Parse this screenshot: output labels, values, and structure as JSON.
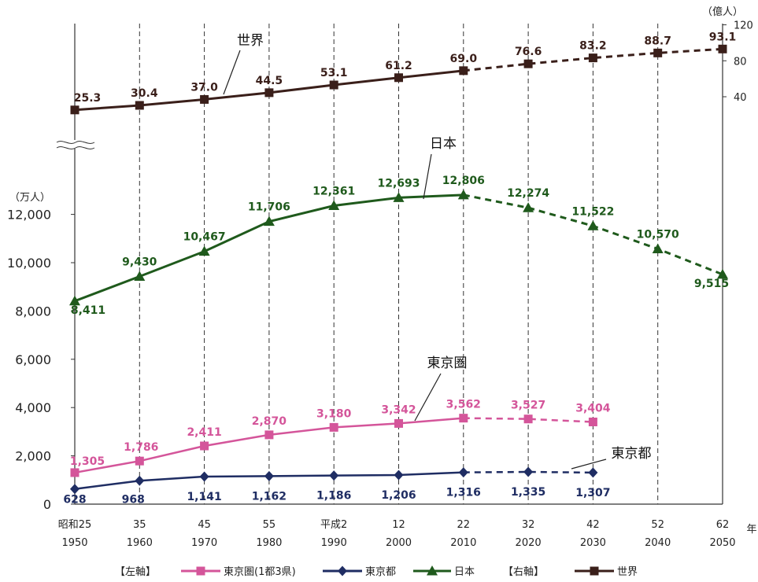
{
  "chart_data": {
    "type": "line",
    "left_axis": {
      "unit_label": "（万人）",
      "ticks": [
        0,
        2000,
        4000,
        6000,
        8000,
        10000,
        12000
      ],
      "tick_labels": [
        "0",
        "2,000",
        "4,000",
        "6,000",
        "8,000",
        "10,000",
        "12,000"
      ],
      "ylim": [
        0,
        13000
      ]
    },
    "right_axis": {
      "unit_label": "（億人）",
      "ticks": [
        40,
        80,
        120
      ],
      "tick_labels": [
        "40",
        "80",
        "120"
      ]
    },
    "x_unit_label": "年",
    "categories": [
      {
        "era": "昭和25",
        "year": "1950"
      },
      {
        "era": "35",
        "year": "1960"
      },
      {
        "era": "45",
        "year": "1970"
      },
      {
        "era": "55",
        "year": "1980"
      },
      {
        "era": "平成2",
        "year": "1990"
      },
      {
        "era": "12",
        "year": "2000"
      },
      {
        "era": "22",
        "year": "2010"
      },
      {
        "era": "32",
        "year": "2020"
      },
      {
        "era": "42",
        "year": "2030"
      },
      {
        "era": "52",
        "year": "2040"
      },
      {
        "era": "62",
        "year": "2050"
      }
    ],
    "projection_from_index": 6,
    "series": [
      {
        "key": "world",
        "axis": "right",
        "color": "#3a1f1a",
        "marker": "square",
        "label": "世界",
        "values": [
          25.3,
          30.4,
          37.0,
          44.5,
          53.1,
          61.2,
          69.0,
          76.6,
          83.2,
          88.7,
          93.1
        ],
        "data_labels": [
          "25.3",
          "30.4",
          "37.0",
          "44.5",
          "53.1",
          "61.2",
          "69.0",
          "76.6",
          "83.2",
          "88.7",
          "93.1"
        ]
      },
      {
        "key": "japan",
        "axis": "left",
        "color": "#1f5a1c",
        "marker": "triangle",
        "label": "日本",
        "values": [
          8411,
          9430,
          10467,
          11706,
          12361,
          12693,
          12806,
          12274,
          11522,
          10570,
          9515
        ],
        "data_labels": [
          "8,411",
          "9,430",
          "10,467",
          "11,706",
          "12,361",
          "12,693",
          "12,806",
          "12,274",
          "11,522",
          "10,570",
          "9,515"
        ]
      },
      {
        "key": "tokyo_area",
        "axis": "left",
        "color": "#d4559a",
        "marker": "square",
        "label": "東京圏",
        "values": [
          1305,
          1786,
          2411,
          2870,
          3180,
          3342,
          3562,
          3527,
          3404,
          null,
          null
        ],
        "data_labels": [
          "1,305",
          "1,786",
          "2,411",
          "2,870",
          "3,180",
          "3,342",
          "3,562",
          "3,527",
          "3,404"
        ]
      },
      {
        "key": "tokyo",
        "axis": "left",
        "color": "#1f2d63",
        "marker": "diamond",
        "label": "東京都",
        "values": [
          628,
          968,
          1141,
          1162,
          1186,
          1206,
          1316,
          1335,
          1307,
          null,
          null
        ],
        "data_labels": [
          "628",
          "968",
          "1,141",
          "1,162",
          "1,186",
          "1,206",
          "1,316",
          "1,335",
          "1,307"
        ]
      }
    ],
    "legend": {
      "left_axis_label": "【左軸】",
      "right_axis_label": "【右軸】",
      "entries": [
        {
          "key": "tokyo_area",
          "label": "東京圏(1都3県)"
        },
        {
          "key": "tokyo",
          "label": "東京都"
        },
        {
          "key": "japan",
          "label": "日本"
        },
        {
          "key": "world",
          "label": "世界"
        }
      ]
    }
  }
}
